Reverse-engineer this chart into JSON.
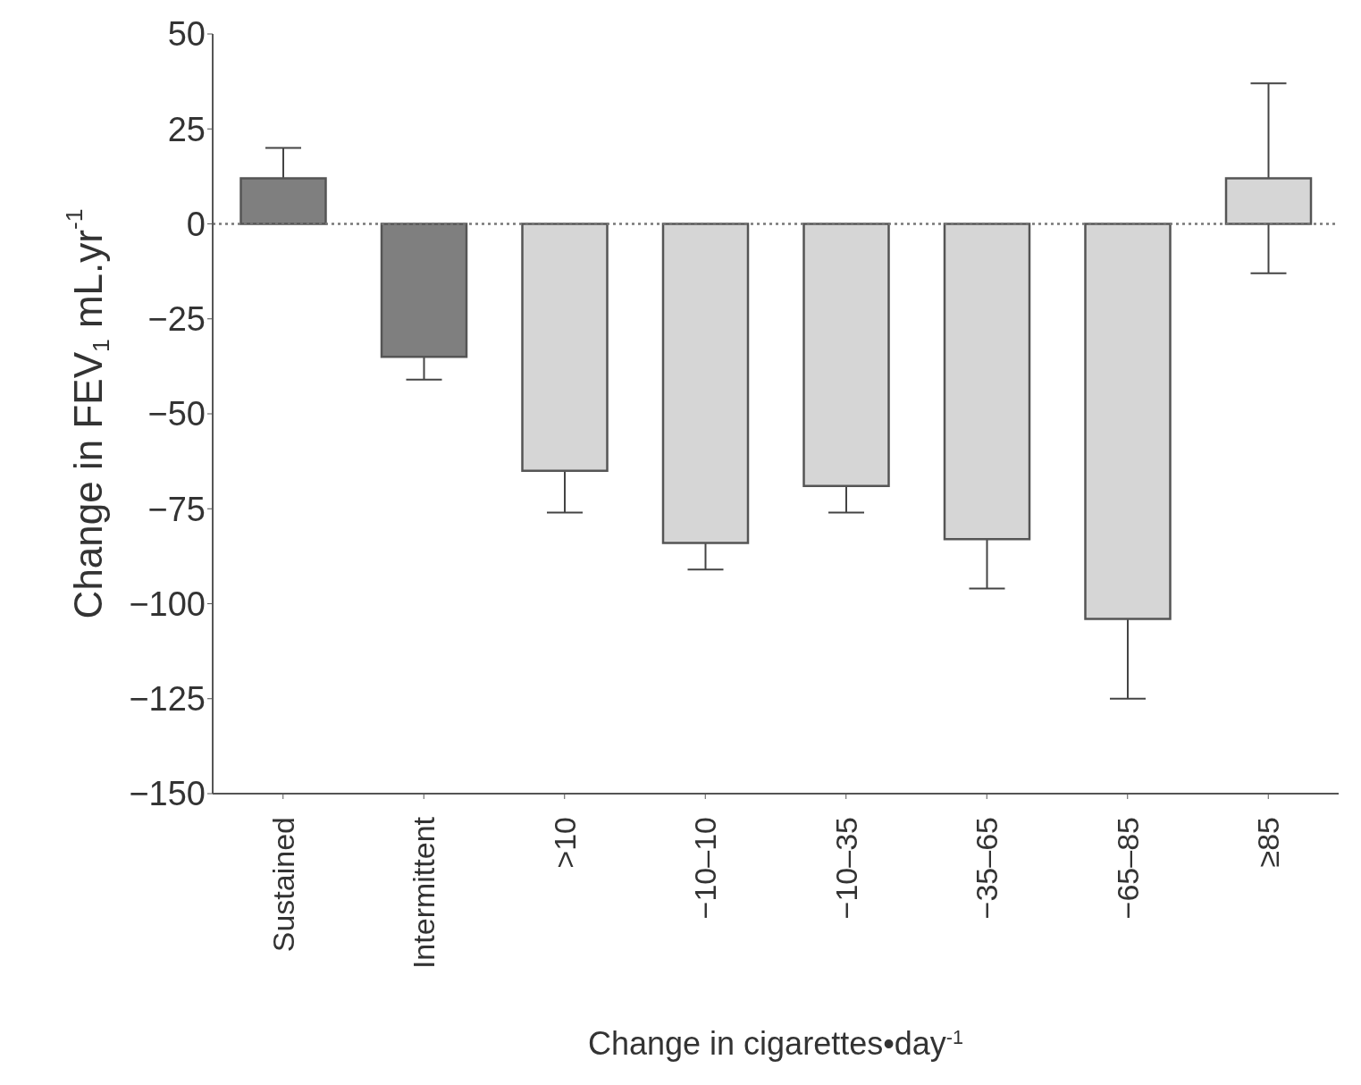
{
  "chart_data": {
    "type": "bar",
    "xlabel": "Change in cigarettes•day$^{-1}$",
    "ylabel": "Change in FEV$_{1}$ mL.yr$^{-1}$",
    "categories": [
      "Sustained",
      "Intermittent",
      ">10",
      "−10–10",
      "−10–35",
      "−35–65",
      "−65–85",
      "≥85"
    ],
    "values": [
      12,
      -35,
      -65,
      -84,
      -69,
      -83,
      -104,
      12
    ],
    "errors": [
      8,
      6,
      11,
      7,
      7,
      13,
      21,
      25
    ],
    "colors": [
      "#7f7f7f",
      "#7f7f7f",
      "#d6d6d6",
      "#d6d6d6",
      "#d6d6d6",
      "#d6d6d6",
      "#d6d6d6",
      "#d6d6d6"
    ],
    "ylim": [
      -150,
      50
    ],
    "yticks": [
      -150,
      -125,
      -100,
      -75,
      -50,
      -25,
      0,
      25,
      50
    ],
    "ref_lines": [
      {
        "axis": "y",
        "value": 0,
        "line_style": "dotted",
        "color": "#777777"
      }
    ],
    "grid": false,
    "legend": false
  }
}
